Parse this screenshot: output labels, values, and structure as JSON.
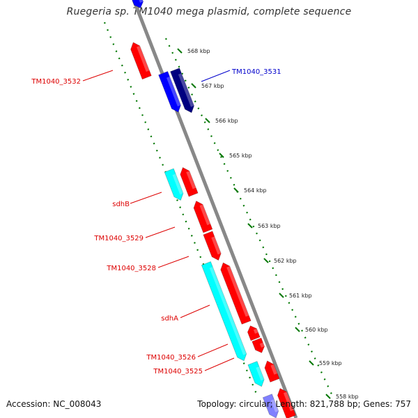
{
  "title": "Ruegeria sp. TM1040 mega plasmid, complete sequence",
  "footer": {
    "accession": "Accession: NC_008043",
    "stats": "Topology: circular; Length: 821,788 bp; Genes: 757"
  },
  "colors": {
    "backbone": "#888888",
    "gene_red": "#ff0000",
    "gene_cyan": "#00ffff",
    "gene_blue": "#0000ff",
    "gene_navy": "#000080",
    "gene_lavender": "#8080ff",
    "tick_green": "#007700",
    "label_red": "#dd0000",
    "label_blue": "#0000cc"
  },
  "ticks": [
    "568 kbp",
    "567 kbp",
    "566 kbp",
    "565 kbp",
    "564 kbp",
    "563 kbp",
    "562 kbp",
    "561 kbp",
    "560 kbp",
    "559 kbp",
    "558 kbp"
  ],
  "gene_labels": [
    {
      "text": "TM1040_3531",
      "color": "blue"
    },
    {
      "text": "TM1040_3532",
      "color": "red"
    },
    {
      "text": "sdhB",
      "color": "red"
    },
    {
      "text": "TM1040_3529",
      "color": "red"
    },
    {
      "text": "TM1040_3528",
      "color": "red"
    },
    {
      "text": "sdhA",
      "color": "red"
    },
    {
      "text": "TM1040_3526",
      "color": "red"
    },
    {
      "text": "TM1040_3525",
      "color": "red"
    }
  ]
}
